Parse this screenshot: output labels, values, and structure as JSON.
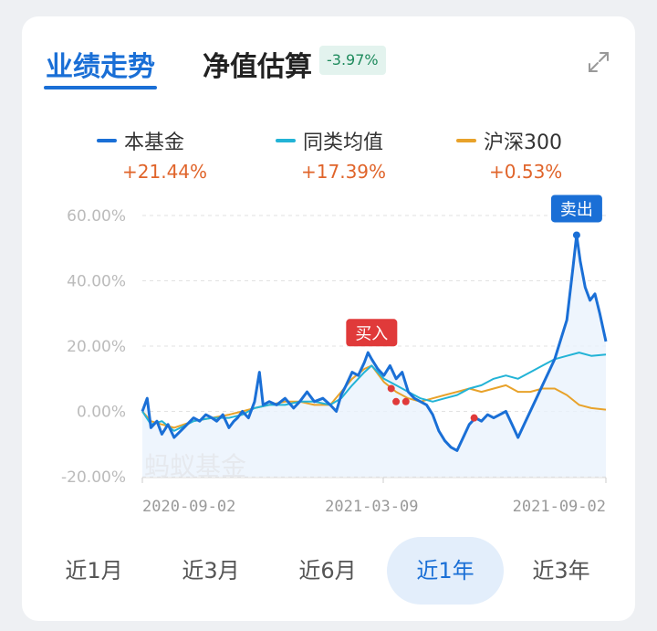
{
  "tabs": {
    "performance": "业绩走势",
    "nav_estimate": "净值估算",
    "nav_change": "-3.97%"
  },
  "legend": [
    {
      "name": "本基金",
      "value": "+21.44%",
      "color": "#1a6fd6"
    },
    {
      "name": "同类均值",
      "value": "+17.39%",
      "color": "#22b3d6"
    },
    {
      "name": "沪深300",
      "value": "+0.53%",
      "color": "#e8a22a"
    }
  ],
  "watermark": "蚂蚁基金",
  "markers": {
    "buy": "买入",
    "sell": "卖出"
  },
  "periods": [
    {
      "label": "近1月",
      "active": false
    },
    {
      "label": "近3月",
      "active": false
    },
    {
      "label": "近6月",
      "active": false
    },
    {
      "label": "近1年",
      "active": true
    },
    {
      "label": "近3年",
      "active": false
    }
  ],
  "chart_data": {
    "type": "line",
    "y_ticks": [
      "60.00%",
      "40.00%",
      "20.00%",
      "0.00%",
      "-20.00%"
    ],
    "x_ticks": [
      "2020-09-02",
      "2021-03-09",
      "2021-09-02"
    ],
    "ylim": [
      -20,
      60
    ],
    "x_start": "2020-09-02",
    "x_end": "2021-09-17",
    "series": [
      {
        "name": "本基金",
        "color": "#1a6fd6",
        "points": [
          [
            "2020-09-02",
            0
          ],
          [
            "2020-09-06",
            4
          ],
          [
            "2020-09-09",
            -5
          ],
          [
            "2020-09-14",
            -3
          ],
          [
            "2020-09-18",
            -7
          ],
          [
            "2020-09-23",
            -4
          ],
          [
            "2020-09-28",
            -8
          ],
          [
            "2020-10-06",
            -5
          ],
          [
            "2020-10-14",
            -2
          ],
          [
            "2020-10-19",
            -3
          ],
          [
            "2020-10-24",
            -1
          ],
          [
            "2020-10-29",
            -2
          ],
          [
            "2020-11-02",
            -3
          ],
          [
            "2020-11-07",
            -1
          ],
          [
            "2020-11-12",
            -5
          ],
          [
            "2020-11-16",
            -3
          ],
          [
            "2020-11-19",
            -2
          ],
          [
            "2020-11-23",
            0
          ],
          [
            "2020-11-28",
            -2
          ],
          [
            "2020-12-03",
            3
          ],
          [
            "2020-12-07",
            12
          ],
          [
            "2020-12-10",
            2
          ],
          [
            "2020-12-15",
            3
          ],
          [
            "2020-12-21",
            2
          ],
          [
            "2020-12-28",
            4
          ],
          [
            "2021-01-04",
            1
          ],
          [
            "2021-01-09",
            3
          ],
          [
            "2021-01-15",
            6
          ],
          [
            "2021-01-21",
            3
          ],
          [
            "2021-01-28",
            4
          ],
          [
            "2021-02-03",
            2
          ],
          [
            "2021-02-08",
            0
          ],
          [
            "2021-02-12",
            5
          ],
          [
            "2021-02-16",
            8
          ],
          [
            "2021-02-21",
            12
          ],
          [
            "2021-02-26",
            11
          ],
          [
            "2021-03-03",
            15
          ],
          [
            "2021-03-06",
            18
          ],
          [
            "2021-03-09",
            16
          ],
          [
            "2021-03-14",
            13
          ],
          [
            "2021-03-19",
            11
          ],
          [
            "2021-03-24",
            14
          ],
          [
            "2021-03-29",
            10
          ],
          [
            "2021-04-03",
            12
          ],
          [
            "2021-04-08",
            6
          ],
          [
            "2021-04-13",
            4
          ],
          [
            "2021-04-18",
            3
          ],
          [
            "2021-04-23",
            2
          ],
          [
            "2021-04-28",
            -1
          ],
          [
            "2021-05-03",
            -6
          ],
          [
            "2021-05-08",
            -9
          ],
          [
            "2021-05-13",
            -11
          ],
          [
            "2021-05-18",
            -12
          ],
          [
            "2021-05-23",
            -8
          ],
          [
            "2021-05-28",
            -4
          ],
          [
            "2021-06-02",
            -2
          ],
          [
            "2021-06-07",
            -3
          ],
          [
            "2021-06-12",
            -1
          ],
          [
            "2021-06-17",
            -2
          ],
          [
            "2021-06-22",
            -1
          ],
          [
            "2021-06-27",
            0
          ],
          [
            "2021-07-02",
            -4
          ],
          [
            "2021-07-07",
            -8
          ],
          [
            "2021-07-12",
            -4
          ],
          [
            "2021-07-17",
            0
          ],
          [
            "2021-07-22",
            4
          ],
          [
            "2021-07-27",
            8
          ],
          [
            "2021-08-01",
            12
          ],
          [
            "2021-08-06",
            16
          ],
          [
            "2021-08-11",
            22
          ],
          [
            "2021-08-16",
            28
          ],
          [
            "2021-08-21",
            44
          ],
          [
            "2021-08-24",
            54
          ],
          [
            "2021-08-27",
            46
          ],
          [
            "2021-08-31",
            38
          ],
          [
            "2021-09-04",
            34
          ],
          [
            "2021-09-08",
            36
          ],
          [
            "2021-09-12",
            30
          ],
          [
            "2021-09-17",
            21.44
          ]
        ]
      },
      {
        "name": "同类均值",
        "color": "#22b3d6",
        "points": [
          [
            "2020-09-02",
            0
          ],
          [
            "2020-09-09",
            -4
          ],
          [
            "2020-09-18",
            -3
          ],
          [
            "2020-09-28",
            -6
          ],
          [
            "2020-10-14",
            -3
          ],
          [
            "2020-10-29",
            -2
          ],
          [
            "2020-11-12",
            -2
          ],
          [
            "2020-11-23",
            -1
          ],
          [
            "2020-12-03",
            1
          ],
          [
            "2020-12-15",
            2
          ],
          [
            "2020-12-28",
            2
          ],
          [
            "2021-01-09",
            3
          ],
          [
            "2021-01-21",
            3
          ],
          [
            "2021-02-03",
            2
          ],
          [
            "2021-02-12",
            4
          ],
          [
            "2021-02-21",
            8
          ],
          [
            "2021-03-03",
            12
          ],
          [
            "2021-03-09",
            14
          ],
          [
            "2021-03-19",
            10
          ],
          [
            "2021-03-29",
            8
          ],
          [
            "2021-04-08",
            6
          ],
          [
            "2021-04-18",
            4
          ],
          [
            "2021-04-28",
            3
          ],
          [
            "2021-05-08",
            4
          ],
          [
            "2021-05-18",
            5
          ],
          [
            "2021-05-28",
            7
          ],
          [
            "2021-06-07",
            8
          ],
          [
            "2021-06-17",
            10
          ],
          [
            "2021-06-27",
            11
          ],
          [
            "2021-07-07",
            10
          ],
          [
            "2021-07-17",
            12
          ],
          [
            "2021-07-27",
            14
          ],
          [
            "2021-08-06",
            16
          ],
          [
            "2021-08-16",
            17
          ],
          [
            "2021-08-26",
            18
          ],
          [
            "2021-09-05",
            17
          ],
          [
            "2021-09-17",
            17.39
          ]
        ]
      },
      {
        "name": "沪深300",
        "color": "#e8a22a",
        "points": [
          [
            "2020-09-02",
            0
          ],
          [
            "2020-09-09",
            -3
          ],
          [
            "2020-09-18",
            -4
          ],
          [
            "2020-09-28",
            -5
          ],
          [
            "2020-10-14",
            -3
          ],
          [
            "2020-10-29",
            -2
          ],
          [
            "2020-11-12",
            -1
          ],
          [
            "2020-11-23",
            0
          ],
          [
            "2020-12-03",
            1
          ],
          [
            "2020-12-15",
            2
          ],
          [
            "2020-12-28",
            3
          ],
          [
            "2021-01-09",
            3
          ],
          [
            "2021-01-21",
            2
          ],
          [
            "2021-02-03",
            2
          ],
          [
            "2021-02-12",
            6
          ],
          [
            "2021-02-21",
            10
          ],
          [
            "2021-03-03",
            13
          ],
          [
            "2021-03-09",
            14
          ],
          [
            "2021-03-19",
            9
          ],
          [
            "2021-03-29",
            6
          ],
          [
            "2021-04-08",
            4
          ],
          [
            "2021-04-18",
            3
          ],
          [
            "2021-04-28",
            4
          ],
          [
            "2021-05-08",
            5
          ],
          [
            "2021-05-18",
            6
          ],
          [
            "2021-05-28",
            7
          ],
          [
            "2021-06-07",
            6
          ],
          [
            "2021-06-17",
            7
          ],
          [
            "2021-06-27",
            8
          ],
          [
            "2021-07-07",
            6
          ],
          [
            "2021-07-17",
            6
          ],
          [
            "2021-07-27",
            7
          ],
          [
            "2021-08-06",
            7
          ],
          [
            "2021-08-16",
            5
          ],
          [
            "2021-08-26",
            2
          ],
          [
            "2021-09-05",
            1
          ],
          [
            "2021-09-17",
            0.53
          ]
        ]
      }
    ],
    "annotations": [
      {
        "label": "买入",
        "x": "2021-03-09",
        "y": 16
      },
      {
        "label": "卖出",
        "x": "2021-08-24",
        "y": 54
      }
    ],
    "trade_dots": [
      {
        "x": "2021-03-25",
        "y": 7
      },
      {
        "x": "2021-03-29",
        "y": 3
      },
      {
        "x": "2021-04-06",
        "y": 3
      },
      {
        "x": "2021-06-01",
        "y": -2
      },
      {
        "x": "2021-08-24",
        "y": 54
      }
    ]
  }
}
